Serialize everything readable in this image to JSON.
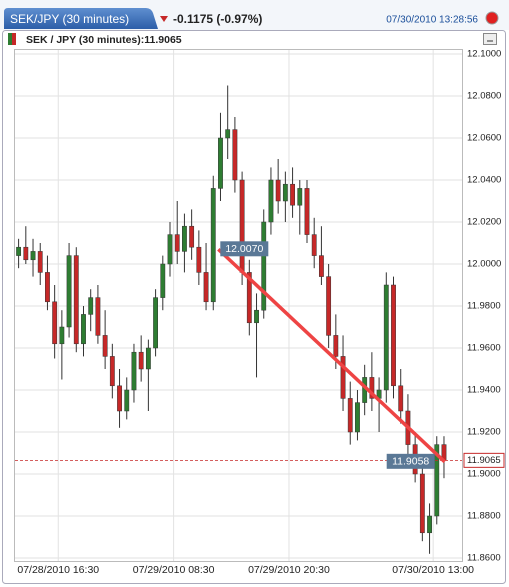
{
  "tab_title": "SEK/JPY (30 minutes)",
  "change": "-0.1175 (-0.97%)",
  "timestamp": "07/30/2010 13:28:56",
  "chart_data": {
    "type": "candlestick",
    "title": "SEK / JPY (30 minutes):11.9065",
    "up_color": "#2e7d32",
    "down_color": "#c62828",
    "grid": true,
    "xlim": [
      0,
      62
    ],
    "ylim": [
      11.86,
      12.1
    ],
    "xticks": [
      {
        "value": 6,
        "label": "07/28/2010 16:30"
      },
      {
        "value": 22,
        "label": "07/29/2010 08:30"
      },
      {
        "value": 38,
        "label": "07/29/2010 20:30"
      },
      {
        "value": 58,
        "label": "07/30/2010 13:00"
      }
    ],
    "yticks": [
      {
        "value": 12.1,
        "label": "12.1000"
      },
      {
        "value": 12.08,
        "label": "12.0800"
      },
      {
        "value": 12.06,
        "label": "12.0600"
      },
      {
        "value": 12.04,
        "label": "12.0400"
      },
      {
        "value": 12.02,
        "label": "12.0200"
      },
      {
        "value": 12.0,
        "label": "12.0000"
      },
      {
        "value": 11.98,
        "label": "11.9800"
      },
      {
        "value": 11.96,
        "label": "11.9600"
      },
      {
        "value": 11.94,
        "label": "11.9400"
      },
      {
        "value": 11.92,
        "label": "11.9200"
      },
      {
        "value": 11.9,
        "label": "11.9000"
      },
      {
        "value": 11.88,
        "label": "11.8800"
      },
      {
        "value": 11.86,
        "label": "11.8600"
      }
    ],
    "open": [
      12.004,
      12.008,
      12.002,
      12.006,
      11.996,
      11.982,
      11.962,
      11.97,
      12.004,
      11.962,
      11.976,
      11.984,
      11.966,
      11.956,
      11.942,
      11.93,
      11.94,
      11.958,
      11.95,
      11.96,
      11.984,
      12.0,
      12.014,
      12.006,
      12.018,
      12.008,
      11.996,
      11.982,
      12.036,
      12.06,
      12.064,
      12.04,
      11.996,
      11.972,
      11.978,
      12.02,
      12.04,
      12.03,
      12.038,
      12.028,
      12.036,
      12.014,
      12.004,
      11.994,
      11.966,
      11.956,
      11.936,
      11.92,
      11.934,
      11.946,
      11.936,
      11.94,
      11.99,
      11.942,
      11.93,
      11.914,
      11.9,
      11.872,
      11.88,
      11.914
    ],
    "high": [
      12.012,
      12.018,
      12.012,
      12.01,
      12.004,
      11.99,
      11.978,
      12.01,
      12.008,
      11.98,
      11.988,
      11.99,
      11.978,
      11.962,
      11.95,
      11.946,
      11.962,
      11.966,
      11.964,
      11.988,
      12.004,
      12.02,
      12.03,
      12.024,
      12.026,
      12.016,
      12.01,
      12.042,
      12.072,
      12.085,
      12.07,
      12.044,
      12.002,
      11.986,
      12.026,
      12.046,
      12.05,
      12.044,
      12.046,
      12.04,
      12.04,
      12.022,
      12.018,
      12.0,
      11.976,
      11.966,
      11.944,
      11.94,
      11.952,
      11.958,
      11.946,
      11.996,
      11.994,
      11.95,
      11.938,
      11.92,
      11.904,
      11.886,
      11.918,
      11.918
    ],
    "low": [
      11.998,
      12.0,
      11.994,
      11.99,
      11.978,
      11.955,
      11.945,
      11.965,
      11.958,
      11.956,
      11.968,
      11.962,
      11.95,
      11.936,
      11.922,
      11.926,
      11.934,
      11.944,
      11.93,
      11.956,
      11.978,
      11.994,
      12.0,
      11.996,
      12.002,
      11.99,
      11.978,
      11.978,
      12.03,
      12.05,
      12.034,
      11.99,
      11.966,
      11.946,
      11.974,
      12.014,
      12.024,
      12.02,
      12.022,
      12.014,
      12.01,
      11.998,
      11.99,
      11.96,
      11.95,
      11.93,
      11.914,
      11.916,
      11.928,
      11.93,
      11.92,
      11.934,
      11.936,
      11.924,
      11.908,
      11.896,
      11.868,
      11.862,
      11.876,
      11.898
    ],
    "close": [
      12.008,
      12.002,
      12.006,
      11.996,
      11.982,
      11.962,
      11.97,
      12.004,
      11.962,
      11.976,
      11.984,
      11.966,
      11.956,
      11.942,
      11.93,
      11.94,
      11.958,
      11.95,
      11.96,
      11.984,
      12.0,
      12.014,
      12.006,
      12.018,
      12.008,
      11.996,
      11.982,
      12.036,
      12.06,
      12.064,
      12.04,
      11.996,
      11.972,
      11.978,
      12.02,
      12.04,
      12.03,
      12.038,
      12.028,
      12.036,
      12.014,
      12.004,
      11.994,
      11.966,
      11.956,
      11.936,
      11.92,
      11.934,
      11.946,
      11.936,
      11.94,
      11.99,
      11.942,
      11.93,
      11.914,
      11.9,
      11.872,
      11.88,
      11.914,
      11.9065
    ],
    "last_price": {
      "value": 11.9065,
      "label": "11.9065",
      "color": "#c62828"
    },
    "trendline": {
      "color": "#ee4444",
      "x": [
        28.2,
        59.6
      ],
      "y": [
        12.007,
        11.9058
      ],
      "labels": [
        "12.0070",
        "11.9058"
      ]
    }
  }
}
